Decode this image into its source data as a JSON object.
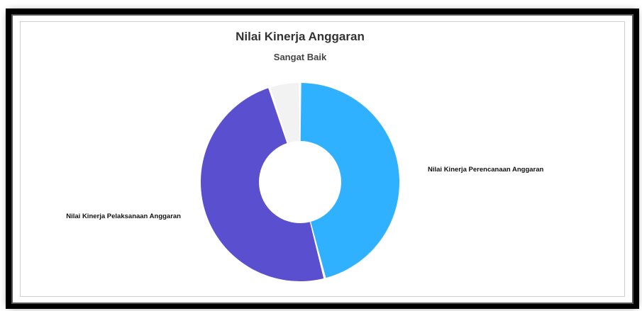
{
  "chart_data": {
    "type": "pie",
    "title": "Nilai Kinerja Anggaran",
    "subtitle": "Sangat Baik",
    "series": [
      {
        "values": [
          {
            "label": "Nilai Kinerja Perencanaan Anggaran",
            "value": 46,
            "color": "#2fb1ff"
          },
          {
            "label": "Nilai Kinerja Pelaksanaan Anggaran",
            "value": 49,
            "color": "#5a4fcf"
          },
          {
            "label": "",
            "value": 5,
            "color": "#f2f2f2"
          }
        ]
      }
    ]
  }
}
